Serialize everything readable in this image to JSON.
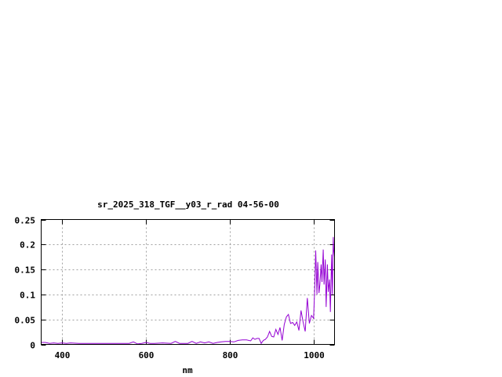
{
  "chart_data": {
    "type": "line",
    "title": "sr_2025_318_TGF__y03_r_rad 04-56-00",
    "xlabel": "nm",
    "ylabel": "",
    "xlim": [
      350,
      1050
    ],
    "ylim": [
      0,
      0.25
    ],
    "xticks": [
      400,
      600,
      800,
      1000
    ],
    "xtick_labels": [
      "400",
      "600",
      "800",
      "1000"
    ],
    "yticks": [
      0,
      0.05,
      0.1,
      0.15,
      0.2,
      0.25
    ],
    "ytick_labels": [
      "0",
      "0.05",
      "0.1",
      "0.15",
      "0.2",
      "0.25"
    ],
    "grid": true,
    "series": [
      {
        "color": "#9400d3",
        "x": [
          350,
          360,
          370,
          380,
          390,
          400,
          410,
          420,
          440,
          460,
          480,
          500,
          520,
          540,
          560,
          570,
          580,
          590,
          600,
          610,
          620,
          640,
          660,
          670,
          680,
          700,
          710,
          720,
          730,
          740,
          750,
          760,
          770,
          780,
          790,
          800,
          810,
          820,
          830,
          840,
          850,
          855,
          860,
          865,
          870,
          875,
          880,
          885,
          890,
          895,
          900,
          905,
          910,
          915,
          920,
          925,
          930,
          935,
          940,
          945,
          950,
          955,
          960,
          965,
          970,
          975,
          980,
          985,
          990,
          995,
          1000,
          1003,
          1005,
          1008,
          1010,
          1013,
          1015,
          1018,
          1020,
          1023,
          1025,
          1028,
          1030,
          1033,
          1035,
          1038,
          1040,
          1043,
          1045,
          1047,
          1048,
          1050
        ],
        "y": [
          0.004,
          0.004,
          0.002,
          0.003,
          0.002,
          0.003,
          0.002,
          0.003,
          0.002,
          0.002,
          0.002,
          0.002,
          0.002,
          0.002,
          0.002,
          0.005,
          0.001,
          0.002,
          0.004,
          0.002,
          0.002,
          0.003,
          0.002,
          0.006,
          0.002,
          0.002,
          0.006,
          0.002,
          0.005,
          0.003,
          0.005,
          0.002,
          0.004,
          0.005,
          0.006,
          0.006,
          0.005,
          0.008,
          0.009,
          0.009,
          0.007,
          0.013,
          0.01,
          0.012,
          0.012,
          0.002,
          0.008,
          0.01,
          0.015,
          0.026,
          0.016,
          0.015,
          0.03,
          0.02,
          0.034,
          0.008,
          0.04,
          0.055,
          0.06,
          0.042,
          0.044,
          0.038,
          0.045,
          0.028,
          0.068,
          0.045,
          0.026,
          0.093,
          0.042,
          0.058,
          0.052,
          0.12,
          0.188,
          0.1,
          0.165,
          0.103,
          0.12,
          0.16,
          0.125,
          0.19,
          0.12,
          0.17,
          0.075,
          0.16,
          0.105,
          0.13,
          0.065,
          0.18,
          0.1,
          0.215,
          0.19,
          0.175
        ]
      }
    ]
  }
}
